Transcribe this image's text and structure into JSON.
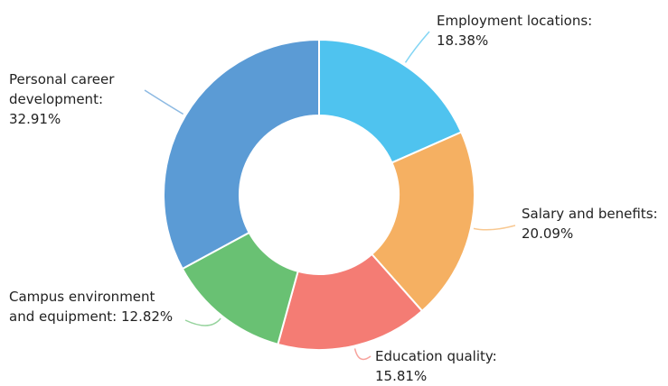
{
  "chart_data": {
    "type": "donut",
    "values": [
      18.38,
      20.09,
      15.81,
      12.82,
      32.91
    ],
    "value_labels": [
      "Employment locations: 18.38%",
      "Salary and benefits: 20.09%",
      "Education quality: 15.81%",
      "Campus environment and equipment: 12.82%",
      "Personal career development: 32.91%"
    ],
    "colors": [
      "#4fc3ef",
      "#f5b062",
      "#f47c74",
      "#69c173",
      "#5b9bd5"
    ]
  }
}
